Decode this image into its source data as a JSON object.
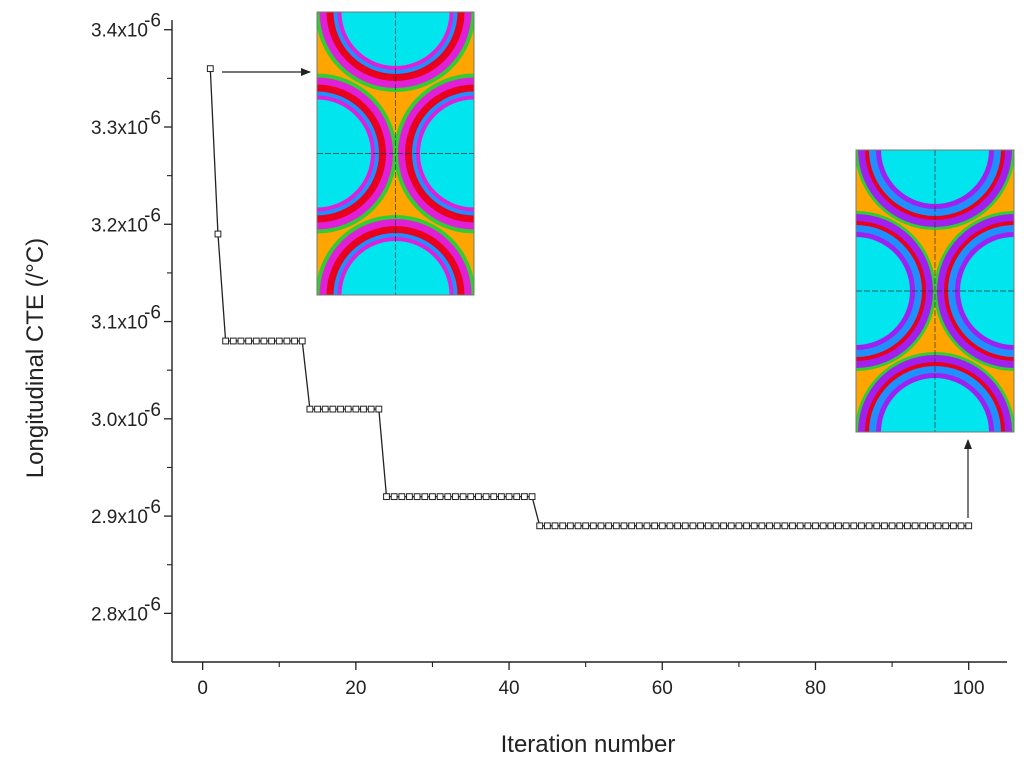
{
  "chart_data": {
    "type": "line",
    "xlabel": "Iteration number",
    "ylabel": "Longitudinal  CTE (/°C)",
    "xlim": [
      -4,
      105
    ],
    "ylim": [
      2.75,
      3.41
    ],
    "y_exponent": "-6",
    "x_ticks": [
      0,
      20,
      40,
      60,
      80,
      100
    ],
    "y_ticks": [
      {
        "value": 2.8,
        "mantissa": "2.8x10"
      },
      {
        "value": 2.9,
        "mantissa": "2.9x10"
      },
      {
        "value": 3.0,
        "mantissa": "3.0x10"
      },
      {
        "value": 3.1,
        "mantissa": "3.1x10"
      },
      {
        "value": 3.2,
        "mantissa": "3.2x10"
      },
      {
        "value": 3.3,
        "mantissa": "3.3x10"
      },
      {
        "value": 3.4,
        "mantissa": "3.4x10"
      }
    ],
    "grid": false,
    "marker": "open-square",
    "series": [
      {
        "segments": [
          {
            "from": 1,
            "to": 1,
            "y": 3.36
          },
          {
            "from": 2,
            "to": 2,
            "y": 3.19
          },
          {
            "from": 3,
            "to": 13,
            "y": 3.08
          },
          {
            "from": 14,
            "to": 23,
            "y": 3.01
          },
          {
            "from": 24,
            "to": 43,
            "y": 2.92
          },
          {
            "from": 44,
            "to": 100,
            "y": 2.89
          }
        ]
      }
    ],
    "insets": [
      {
        "label": "microstructure-initial",
        "points_to_iteration": 1
      },
      {
        "label": "microstructure-final",
        "points_to_iteration": 100
      }
    ]
  },
  "colors": {
    "matrix": "#FFA500",
    "fiber": "#00E5EE",
    "coating_blue": "#1E90FF",
    "coating_red": "#E8001C",
    "coating_magenta": "#E020D8",
    "coating_green": "#33CC33",
    "coating_purple": "#A020F0",
    "axis": "#222222"
  }
}
